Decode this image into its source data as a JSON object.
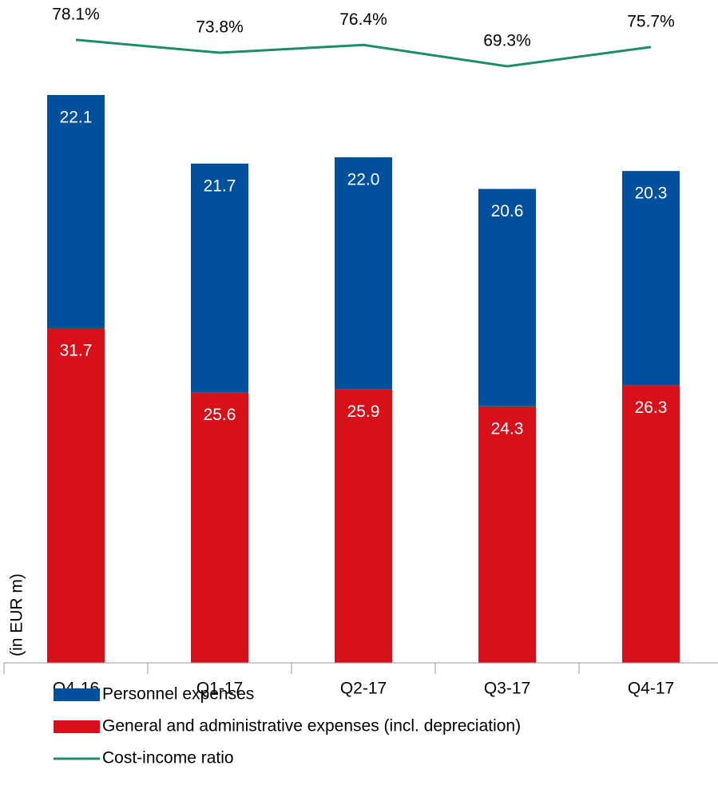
{
  "chart_data": {
    "type": "stacked_bar_line",
    "y_label": "(in EUR m)",
    "categories": [
      "Q4-16",
      "Q1-17",
      "Q2-17",
      "Q3-17",
      "Q4-17"
    ],
    "series": [
      {
        "name": "General and administrative expenses (incl. depreciation)",
        "color": "#d7101a",
        "values": [
          31.7,
          25.6,
          25.9,
          24.3,
          26.3
        ],
        "value_labels": [
          "31.7",
          "25.6",
          "25.9",
          "24.3",
          "26.3"
        ]
      },
      {
        "name": "Personnel expenses",
        "color": "#00509e",
        "values": [
          22.1,
          21.7,
          22.0,
          20.6,
          20.3
        ],
        "value_labels": [
          "22.1",
          "21.7",
          "22.0",
          "20.6",
          "20.3"
        ]
      },
      {
        "name": "Cost-income ratio",
        "color": "#1e8c6a",
        "axis": "y2",
        "values": [
          78.1,
          73.8,
          76.4,
          69.3,
          75.7
        ],
        "value_labels": [
          "78.1%",
          "73.8%",
          "76.4%",
          "69.3%",
          "75.7%"
        ]
      }
    ],
    "legend_order": [
      1,
      0,
      2
    ],
    "ylim": [
      0,
      60
    ],
    "y2lim": [
      60,
      90
    ]
  }
}
